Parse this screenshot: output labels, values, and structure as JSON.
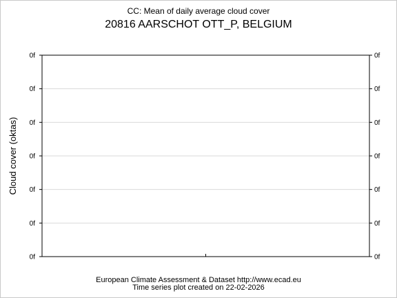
{
  "header": {
    "title": "CC: Mean of daily average cloud cover",
    "subtitle": "20816 AARSCHOT OTT_P, BELGIUM"
  },
  "footer": {
    "source": "European Climate Assessment & Dataset  http://www.ecad.eu",
    "created": "Time series plot created on 22-02-2026"
  },
  "colors": {
    "grid": "#d9d9d9",
    "axis": "#000000"
  },
  "chart_data": {
    "type": "line",
    "title": "CC: Mean of daily average cloud cover",
    "subtitle": "20816 AARSCHOT OTT_P, BELGIUM",
    "xlabel": "",
    "ylabel": "Cloud cover (oktas)",
    "y_tick_labels": [
      "0f",
      "0f",
      "0f",
      "0f",
      "0f",
      "0f",
      "0f"
    ],
    "y_tick_labels_right": [
      "0f",
      "0f",
      "0f",
      "0f",
      "0f",
      "0f",
      "0f"
    ],
    "x_tick_labels": [
      ""
    ],
    "series": [],
    "grid": true,
    "legend": "none"
  }
}
